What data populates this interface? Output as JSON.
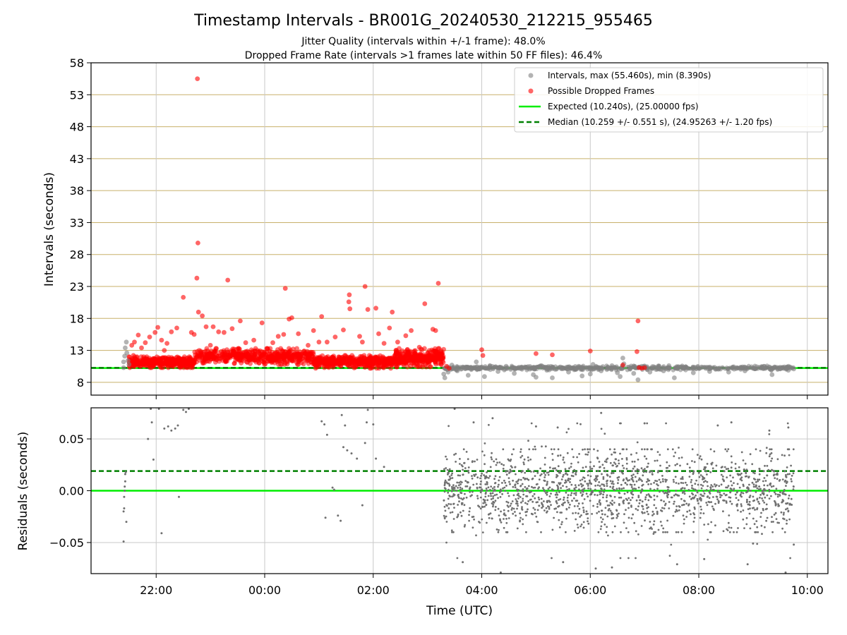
{
  "figure": {
    "title": "Timestamp Intervals - BR001G_20240530_212215_955465",
    "subtitle_line1": "Jitter Quality (intervals within +/-1 frame): 48.0%",
    "subtitle_line2": "Dropped Frame Rate (intervals >1 frames late within 50 FF files): 46.4%"
  },
  "chart_data": [
    {
      "type": "scatter",
      "panel": "top",
      "title": "",
      "xlabel": "",
      "ylabel": "Intervals (seconds)",
      "x_unit": "hours since 00:00 UTC (negative = previous day)",
      "xlim": [
        -3.2,
        10.38
      ],
      "ylim": [
        6.0,
        58.0
      ],
      "yticks": [
        8,
        13,
        18,
        23,
        28,
        33,
        38,
        43,
        48,
        53,
        58
      ],
      "grid": true,
      "legend_position": "top-right",
      "legend": [
        {
          "label": "Intervals, max (55.460s), min (8.390s)",
          "kind": "dot",
          "color": "#808080"
        },
        {
          "label": "Possible Dropped Frames",
          "kind": "dot",
          "color": "#ff0000"
        },
        {
          "label": "Expected (10.240s), (25.00000 fps)",
          "kind": "line",
          "color": "#00ee00"
        },
        {
          "label": "Median (10.259 +/- 0.551 s), (24.95263 +/- 1.20 fps)",
          "kind": "dashed",
          "color": "#008000"
        }
      ],
      "expected_line": 10.24,
      "median_line": 10.259,
      "series": [
        {
          "name": "Intervals",
          "color": "#808080",
          "points": [
            [
              -2.6,
              10.3
            ],
            [
              -2.6,
              11.2
            ],
            [
              -2.58,
              12.1
            ],
            [
              -2.57,
              13.4
            ],
            [
              -2.55,
              14.3
            ],
            [
              -2.54,
              12.6
            ],
            [
              -2.52,
              11.4
            ],
            [
              -2.5,
              10.8
            ],
            [
              3.3,
              9.3
            ],
            [
              3.32,
              8.7
            ],
            [
              3.34,
              10.2
            ],
            [
              3.38,
              9.6
            ],
            [
              3.45,
              10.7
            ],
            [
              3.55,
              9.8
            ],
            [
              3.65,
              10.4
            ],
            [
              3.75,
              9.1
            ],
            [
              3.9,
              11.2
            ],
            [
              3.95,
              10.1
            ],
            [
              4.05,
              8.9
            ],
            [
              4.15,
              10.6
            ],
            [
              4.3,
              9.7
            ],
            [
              4.45,
              10.5
            ],
            [
              4.6,
              9.4
            ],
            [
              4.75,
              10.3
            ],
            [
              4.95,
              9.2
            ],
            [
              5.0,
              8.8
            ],
            [
              5.1,
              10.6
            ],
            [
              5.2,
              9.9
            ],
            [
              5.3,
              8.7
            ],
            [
              5.45,
              10.4
            ],
            [
              5.6,
              9.6
            ],
            [
              5.75,
              10.2
            ],
            [
              5.85,
              9.0
            ],
            [
              6.0,
              9.3
            ],
            [
              6.05,
              10.8
            ],
            [
              6.2,
              9.8
            ],
            [
              6.4,
              10.6
            ],
            [
              6.5,
              9.5
            ],
            [
              6.55,
              8.9
            ],
            [
              6.6,
              11.8
            ],
            [
              6.62,
              10.9
            ],
            [
              6.8,
              9.4
            ],
            [
              6.88,
              8.4
            ],
            [
              6.95,
              10.5
            ],
            [
              7.1,
              9.6
            ],
            [
              7.25,
              10.2
            ],
            [
              7.35,
              9.8
            ],
            [
              7.45,
              10.6
            ],
            [
              7.55,
              8.7
            ],
            [
              7.7,
              10.3
            ],
            [
              7.9,
              9.5
            ],
            [
              8.05,
              10.4
            ],
            [
              8.2,
              9.7
            ],
            [
              8.35,
              10.2
            ],
            [
              8.55,
              9.6
            ],
            [
              8.7,
              10.3
            ],
            [
              8.85,
              9.8
            ],
            [
              9.0,
              10.2
            ],
            [
              9.2,
              10.5
            ],
            [
              9.35,
              9.2
            ],
            [
              9.5,
              10.1
            ],
            [
              9.65,
              9.9
            ],
            [
              9.75,
              10.1
            ]
          ]
        },
        {
          "name": "Possible Dropped Frames",
          "color": "#ff0000",
          "points": [
            [
              -2.45,
              13.8
            ],
            [
              -2.42,
              12.2
            ],
            [
              -2.4,
              14.3
            ],
            [
              -2.33,
              15.4
            ],
            [
              -2.27,
              13.4
            ],
            [
              -2.2,
              14.2
            ],
            [
              -2.12,
              15.1
            ],
            [
              -2.02,
              15.8
            ],
            [
              -1.97,
              16.6
            ],
            [
              -1.9,
              14.6
            ],
            [
              -1.85,
              13.0
            ],
            [
              -1.8,
              14.1
            ],
            [
              -1.72,
              15.9
            ],
            [
              -1.62,
              16.5
            ],
            [
              -1.5,
              21.3
            ],
            [
              -1.35,
              15.8
            ],
            [
              -1.3,
              15.5
            ],
            [
              -1.25,
              24.3
            ],
            [
              -1.24,
              55.5
            ],
            [
              -1.23,
              29.8
            ],
            [
              -1.22,
              19.0
            ],
            [
              -1.15,
              18.4
            ],
            [
              -1.08,
              16.7
            ],
            [
              -1.0,
              13.8
            ],
            [
              -0.95,
              16.7
            ],
            [
              -0.85,
              15.9
            ],
            [
              -0.75,
              15.8
            ],
            [
              -0.68,
              24.0
            ],
            [
              -0.6,
              16.4
            ],
            [
              -0.45,
              17.6
            ],
            [
              -0.35,
              14.2
            ],
            [
              -0.2,
              14.6
            ],
            [
              -0.05,
              17.3
            ],
            [
              0.15,
              14.2
            ],
            [
              0.25,
              15.2
            ],
            [
              0.35,
              15.5
            ],
            [
              0.38,
              22.7
            ],
            [
              0.45,
              17.9
            ],
            [
              0.5,
              18.1
            ],
            [
              0.62,
              15.6
            ],
            [
              0.8,
              13.8
            ],
            [
              0.9,
              16.1
            ],
            [
              1.0,
              14.3
            ],
            [
              1.05,
              18.3
            ],
            [
              1.15,
              14.3
            ],
            [
              1.3,
              15.1
            ],
            [
              1.45,
              16.2
            ],
            [
              1.55,
              20.6
            ],
            [
              1.56,
              21.7
            ],
            [
              1.57,
              19.5
            ],
            [
              1.75,
              15.2
            ],
            [
              1.8,
              14.3
            ],
            [
              1.85,
              23.0
            ],
            [
              1.9,
              19.4
            ],
            [
              2.05,
              19.6
            ],
            [
              2.1,
              15.6
            ],
            [
              2.2,
              14.1
            ],
            [
              2.3,
              16.5
            ],
            [
              2.35,
              19.0
            ],
            [
              2.45,
              14.3
            ],
            [
              2.6,
              15.3
            ],
            [
              2.7,
              16.1
            ],
            [
              2.85,
              13.5
            ],
            [
              2.95,
              20.3
            ],
            [
              3.1,
              16.3
            ],
            [
              3.15,
              16.1
            ],
            [
              3.2,
              23.5
            ],
            [
              3.25,
              12.2
            ],
            [
              3.35,
              10.5
            ],
            [
              3.4,
              10.2
            ],
            [
              4.0,
              13.1
            ],
            [
              4.02,
              12.2
            ],
            [
              5.0,
              12.5
            ],
            [
              5.3,
              12.3
            ],
            [
              6.0,
              12.9
            ],
            [
              6.6,
              10.7
            ],
            [
              6.88,
              17.6
            ],
            [
              6.86,
              12.8
            ],
            [
              6.9,
              10.3
            ],
            [
              6.95,
              10.2
            ],
            [
              7.0,
              10.3
            ]
          ]
        }
      ],
      "dense_bands": [
        {
          "name": "Possible Dropped Frames",
          "color": "#ff0000",
          "x_range": [
            -2.5,
            -1.3
          ],
          "y_range": [
            10.3,
            12.0
          ],
          "n": 420
        },
        {
          "name": "Possible Dropped Frames",
          "color": "#ff0000",
          "x_range": [
            -1.3,
            0.9
          ],
          "y_range": [
            10.8,
            13.3
          ],
          "n": 560
        },
        {
          "name": "Possible Dropped Frames",
          "color": "#ff0000",
          "x_range": [
            0.9,
            2.4
          ],
          "y_range": [
            10.2,
            12.2
          ],
          "n": 430
        },
        {
          "name": "Possible Dropped Frames",
          "color": "#ff0000",
          "x_range": [
            2.4,
            3.3
          ],
          "y_range": [
            10.4,
            13.3
          ],
          "n": 320
        },
        {
          "name": "Intervals",
          "color": "#808080",
          "x_range": [
            3.3,
            9.75
          ],
          "y_range": [
            9.9,
            10.6
          ],
          "n": 700
        }
      ]
    },
    {
      "type": "scatter",
      "panel": "bottom",
      "title": "",
      "xlabel": "Time (UTC)",
      "ylabel": "Residuals (seconds)",
      "x_unit": "hours since 00:00 UTC (negative = previous day)",
      "xlim": [
        -3.2,
        10.38
      ],
      "ylim": [
        -0.08,
        0.08
      ],
      "yticks": [
        -0.05,
        0.0,
        0.05
      ],
      "yticklabels": [
        "−0.05",
        "0.00",
        "0.05"
      ],
      "xticks": [
        -2,
        0,
        2,
        4,
        6,
        8,
        10
      ],
      "xticklabels": [
        "22:00",
        "00:00",
        "02:00",
        "04:00",
        "06:00",
        "08:00",
        "10:00"
      ],
      "grid": true,
      "expected_line": 0.0,
      "median_line": 0.019,
      "series": [
        {
          "name": "Residuals",
          "color": "#707070",
          "points": [
            [
              -2.6,
              -0.049
            ],
            [
              -2.6,
              -0.02
            ],
            [
              -2.59,
              -0.017
            ],
            [
              -2.59,
              -0.006
            ],
            [
              -2.58,
              0.0
            ],
            [
              -2.58,
              0.004
            ],
            [
              -2.57,
              0.009
            ],
            [
              -2.57,
              0.016
            ],
            [
              -2.56,
              0.018
            ],
            [
              -2.55,
              -0.03
            ],
            [
              -2.15,
              0.05
            ],
            [
              -2.08,
              0.066
            ],
            [
              -2.05,
              0.03
            ],
            [
              -2.1,
              0.079
            ],
            [
              -1.95,
              0.079
            ],
            [
              -1.9,
              -0.041
            ],
            [
              -1.85,
              0.06
            ],
            [
              -1.78,
              0.062
            ],
            [
              -1.72,
              0.058
            ],
            [
              -1.65,
              0.06
            ],
            [
              -1.6,
              0.063
            ],
            [
              -1.58,
              -0.006
            ],
            [
              -1.5,
              0.078
            ],
            [
              -1.45,
              0.076
            ],
            [
              -1.4,
              0.079
            ],
            [
              1.05,
              0.067
            ],
            [
              1.1,
              0.064
            ],
            [
              1.15,
              0.054
            ],
            [
              1.12,
              -0.026
            ],
            [
              1.25,
              0.003
            ],
            [
              1.28,
              0.001
            ],
            [
              1.35,
              -0.024
            ],
            [
              1.4,
              -0.029
            ],
            [
              1.42,
              0.073
            ],
            [
              1.48,
              0.063
            ],
            [
              1.52,
              0.039
            ],
            [
              1.45,
              0.042
            ],
            [
              1.6,
              0.036
            ],
            [
              1.7,
              0.031
            ],
            [
              1.8,
              -0.014
            ],
            [
              1.85,
              0.046
            ],
            [
              1.88,
              0.066
            ],
            [
              1.9,
              0.078
            ],
            [
              2.0,
              0.064
            ],
            [
              2.05,
              0.031
            ],
            [
              2.2,
              0.023
            ],
            [
              3.5,
              0.079
            ],
            [
              3.65,
              -0.069
            ],
            [
              3.85,
              0.066
            ],
            [
              4.2,
              0.07
            ],
            [
              4.35,
              -0.079
            ],
            [
              5.0,
              0.062
            ],
            [
              5.4,
              0.061
            ],
            [
              5.5,
              -0.069
            ],
            [
              6.1,
              -0.075
            ],
            [
              6.2,
              0.075
            ],
            [
              6.4,
              -0.074
            ],
            [
              7.0,
              0.065
            ],
            [
              7.6,
              -0.071
            ],
            [
              8.1,
              -0.066
            ],
            [
              8.35,
              0.063
            ],
            [
              8.6,
              0.066
            ],
            [
              8.9,
              -0.071
            ],
            [
              9.0,
              -0.051
            ],
            [
              9.3,
              0.058
            ],
            [
              9.6,
              -0.079
            ],
            [
              9.75,
              -0.052
            ],
            [
              9.65,
              0.061
            ]
          ]
        }
      ],
      "dense_bands": [
        {
          "name": "Residuals",
          "color": "#707070",
          "x_range": [
            3.3,
            9.75
          ],
          "y_range": [
            -0.04,
            0.04
          ],
          "n": 1500
        },
        {
          "name": "Residuals",
          "color": "#707070",
          "x_range": [
            3.3,
            9.75
          ],
          "y_range": [
            -0.065,
            0.065
          ],
          "n": 200
        }
      ]
    }
  ]
}
